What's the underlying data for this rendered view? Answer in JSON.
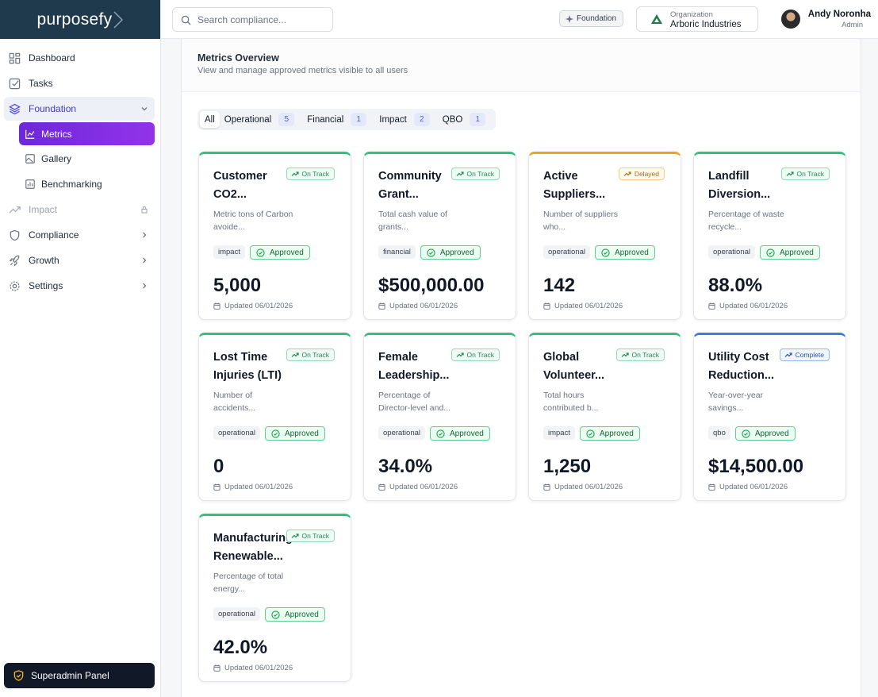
{
  "sidebar": {
    "logo": "purposefy",
    "nav": {
      "dashboard": "Dashboard",
      "tasks": "Tasks",
      "foundation": "Foundation",
      "metrics": "Metrics",
      "gallery": "Gallery",
      "benchmarking": "Benchmarking",
      "impact": "Impact",
      "compliance": "Compliance",
      "growth": "Growth",
      "settings": "Settings"
    },
    "superadmin": "Superadmin Panel"
  },
  "header": {
    "search_placeholder": "Search compliance...",
    "badge": "Foundation",
    "org_label": "Organization",
    "org_name": "Arboric Industries",
    "user_name": "Andy Noronha",
    "user_role": "Admin"
  },
  "section": {
    "title": "Metrics Overview",
    "subtitle": "View and manage approved metrics visible to all users"
  },
  "tabs": [
    {
      "label": "All"
    },
    {
      "label": "Operational",
      "count": 5
    },
    {
      "label": "Financial",
      "count": 1
    },
    {
      "label": "Impact",
      "count": 2
    },
    {
      "label": "QBO",
      "count": 1
    }
  ],
  "cards": [
    {
      "title": "Customer CO2...",
      "status": "On Track",
      "accent": "#34c07c",
      "description": "Metric tons of Carbon avoide...",
      "tag": "impact",
      "approval": "Approved",
      "value": "5,000",
      "updated": "Updated 06/01/2026"
    },
    {
      "title": "Community Grant...",
      "status": "On Track",
      "accent": "#34c07c",
      "description": "Total cash value of grants...",
      "tag": "financial",
      "approval": "Approved",
      "value": "$500,000.00",
      "updated": "Updated 06/01/2026"
    },
    {
      "title": "Active Suppliers...",
      "status": "Delayed",
      "accent": "#eea21f",
      "description": "Number of suppliers who...",
      "tag": "operational",
      "approval": "Approved",
      "value": "142",
      "updated": "Updated 06/01/2026"
    },
    {
      "title": "Landfill Diversion...",
      "status": "On Track",
      "accent": "#34c07c",
      "description": "Percentage of waste recycle...",
      "tag": "operational",
      "approval": "Approved",
      "value": "88.0%",
      "updated": "Updated 06/01/2026"
    },
    {
      "title": "Lost Time Injuries (LTI)",
      "status": "On Track",
      "accent": "#34c07c",
      "description": "Number of accidents...",
      "tag": "operational",
      "approval": "Approved",
      "value": "0",
      "updated": "Updated 06/01/2026"
    },
    {
      "title": "Female Leadership...",
      "status": "On Track",
      "accent": "#34c07c",
      "description": "Percentage of Director-level and...",
      "tag": "operational",
      "approval": "Approved",
      "value": "34.0%",
      "updated": "Updated 06/01/2026"
    },
    {
      "title": "Global Volunteer...",
      "status": "On Track",
      "accent": "#34c07c",
      "description": "Total hours contributed b...",
      "tag": "impact",
      "approval": "Approved",
      "value": "1,250",
      "updated": "Updated 06/01/2026"
    },
    {
      "title": "Utility Cost Reduction...",
      "status": "Complete",
      "accent": "#3b7ce8",
      "description": "Year-over-year savings...",
      "tag": "qbo",
      "approval": "Approved",
      "value": "$14,500.00",
      "updated": "Updated 06/01/2026"
    },
    {
      "title": "Manufacturing Renewable...",
      "status": "On Track",
      "accent": "#34c07c",
      "description": "Percentage of total energy...",
      "tag": "operational",
      "approval": "Approved",
      "value": "42.0%",
      "updated": "Updated 06/01/2026"
    }
  ]
}
